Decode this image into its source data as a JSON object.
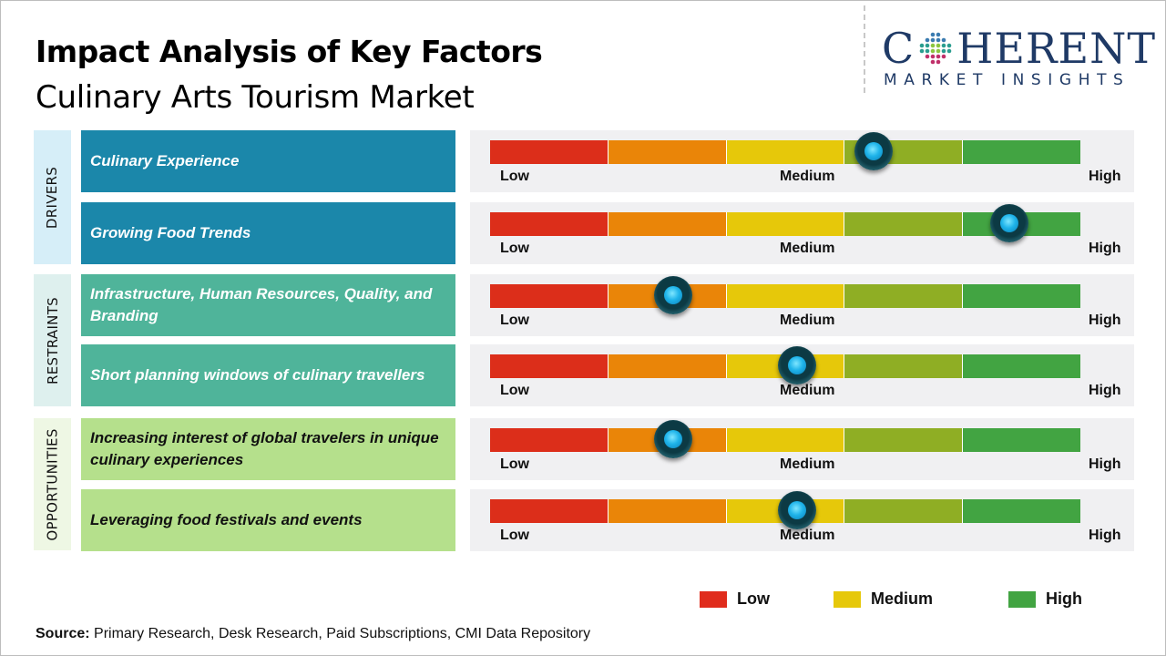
{
  "header": {
    "title": "Impact Analysis of Key Factors",
    "subtitle": "Culinary Arts Tourism Market"
  },
  "logo": {
    "word_pre": "C",
    "word_post": "HERENT",
    "sub": "MARKET INSIGHTS",
    "color": "#1f3a66"
  },
  "scale_labels": {
    "low": "Low",
    "medium": "Medium",
    "high": "High"
  },
  "scale_colors": [
    "#dc2e1a",
    "#ea8508",
    "#e6c80a",
    "#8fae24",
    "#42a442"
  ],
  "categories": [
    {
      "label": "DRIVERS",
      "bg": "#d6eef8",
      "box": "#1b87aa",
      "text": "#ffffff"
    },
    {
      "label": "RESTRAINTS",
      "bg": "#def0ee",
      "box": "#4fb49a",
      "text": "#ffffff"
    },
    {
      "label": "OPPORTUNITIES",
      "bg": "#eef7e4",
      "box": "#b5e08c",
      "text": "#111111"
    }
  ],
  "factors": [
    {
      "category": 0,
      "label": "Culinary Experience",
      "impact": 0.65
    },
    {
      "category": 0,
      "label": "Growing Food Trends",
      "impact": 0.88
    },
    {
      "category": 1,
      "label": " Infrastructure, Human Resources, Quality, and Branding",
      "impact": 0.31
    },
    {
      "category": 1,
      "label": "Short planning windows of culinary travellers",
      "impact": 0.52
    },
    {
      "category": 2,
      "label": "Increasing interest of global travelers in unique culinary experiences",
      "impact": 0.31
    },
    {
      "category": 2,
      "label": "Leveraging food festivals and events",
      "impact": 0.52
    }
  ],
  "legend": [
    {
      "label": "Low",
      "color": "#e02c1c"
    },
    {
      "label": "Medium",
      "color": "#e6c80a"
    },
    {
      "label": "High",
      "color": "#42a442"
    }
  ],
  "source": {
    "prefix": "Source:",
    "text": " Primary Research, Desk Research, Paid Subscriptions, CMI Data Repository"
  }
}
